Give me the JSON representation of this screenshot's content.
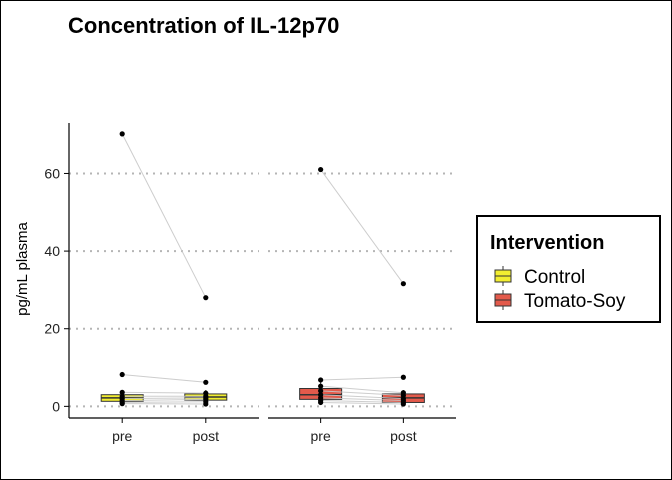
{
  "chart_data": {
    "type": "box",
    "title": "Concentration of IL-12p70",
    "xlabel": "",
    "ylabel": "pg/mL plasma",
    "ylim": [
      -3,
      73
    ],
    "yticks": [
      0,
      20,
      40,
      60
    ],
    "grid": "horizontal-dotted",
    "legend": {
      "title": "Intervention",
      "position": "right",
      "entries": [
        {
          "label": "Control",
          "color": "#f2ee30"
        },
        {
          "label": "Tomato-Soy",
          "color": "#e35a4b"
        }
      ]
    },
    "panels": [
      {
        "group": "Control",
        "color": "#f2ee30",
        "categories": [
          "pre",
          "post"
        ],
        "boxes": [
          {
            "category": "pre",
            "q1": 1.3,
            "median": 2.2,
            "q3": 3.0,
            "whisker_low": 0.5,
            "whisker_high": 4.0
          },
          {
            "category": "post",
            "q1": 1.6,
            "median": 2.4,
            "q3": 3.2,
            "whisker_low": 0.6,
            "whisker_high": 4.2
          }
        ],
        "subjects": [
          {
            "pre": 70.2,
            "post": 28.0
          },
          {
            "pre": 8.2,
            "post": 6.2
          },
          {
            "pre": 3.6,
            "post": 3.4
          },
          {
            "pre": 2.6,
            "post": 2.6
          },
          {
            "pre": 2.0,
            "post": 2.2
          },
          {
            "pre": 1.5,
            "post": 1.8
          },
          {
            "pre": 1.0,
            "post": 1.2
          },
          {
            "pre": 0.7,
            "post": 0.6
          }
        ]
      },
      {
        "group": "Tomato-Soy",
        "color": "#e35a4b",
        "categories": [
          "pre",
          "post"
        ],
        "boxes": [
          {
            "category": "pre",
            "q1": 1.8,
            "median": 3.0,
            "q3": 4.6,
            "whisker_low": 0.8,
            "whisker_high": 6.8
          },
          {
            "category": "post",
            "q1": 1.0,
            "median": 2.2,
            "q3": 3.2,
            "whisker_low": 0.5,
            "whisker_high": 4.2
          }
        ],
        "subjects": [
          {
            "pre": 61.0,
            "post": 31.6
          },
          {
            "pre": 6.8,
            "post": 7.5
          },
          {
            "pre": 5.2,
            "post": 3.5
          },
          {
            "pre": 4.0,
            "post": 2.8
          },
          {
            "pre": 3.0,
            "post": 2.0
          },
          {
            "pre": 2.2,
            "post": 1.5
          },
          {
            "pre": 1.5,
            "post": 1.0
          },
          {
            "pre": 1.0,
            "post": 0.6
          }
        ]
      }
    ]
  }
}
